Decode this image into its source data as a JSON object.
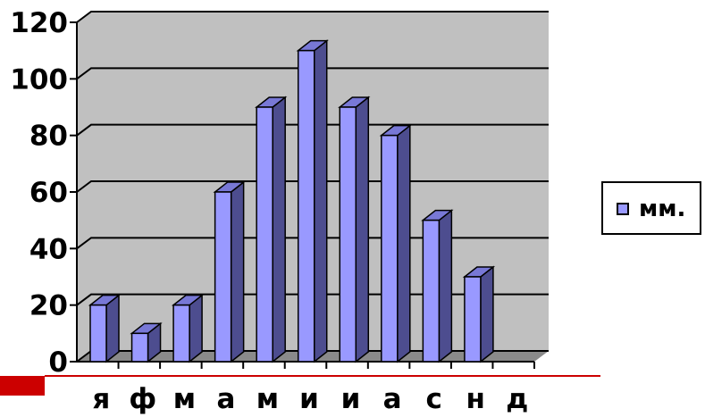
{
  "colors": {
    "bar_face": "#9999ff",
    "bar_side": "#4d4d8f",
    "bar_top": "#7878d6",
    "wall": "#c0c0c0",
    "floor": "#8a8a8a",
    "accent_red": "#cc0000"
  },
  "legend": {
    "label": "мм.",
    "position": "right"
  },
  "chart_data": {
    "type": "bar",
    "categories": [
      "я",
      "ф",
      "м",
      "а",
      "м",
      "и",
      "и",
      "а",
      "с",
      "н",
      "д"
    ],
    "series": [
      {
        "name": "мм.",
        "values": [
          20,
          10,
          20,
          60,
          90,
          110,
          90,
          80,
          50,
          30,
          0
        ]
      }
    ],
    "ylim": [
      0,
      120
    ],
    "yticks": [
      "0",
      "20",
      "40",
      "60",
      "80",
      "100",
      "120"
    ],
    "grid": true,
    "style": "3d-column"
  }
}
